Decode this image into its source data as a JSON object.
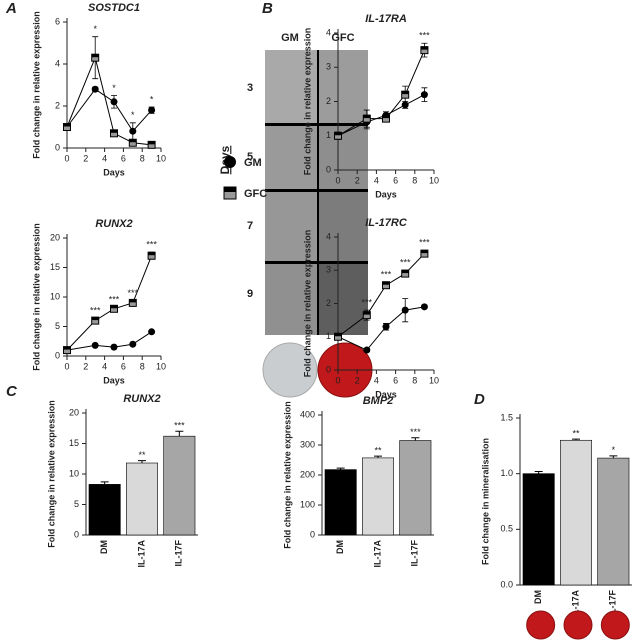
{
  "panel_labels": [
    "A",
    "B",
    "C",
    "D"
  ],
  "panel_b": {
    "columns": [
      "GM",
      "GFC"
    ],
    "rows": [
      "3",
      "5",
      "7",
      "9"
    ],
    "axis_label": "Days"
  },
  "chart_data": [
    {
      "type": "line",
      "title": "SOSTDC1",
      "x_label": "Days",
      "y_label": "Fold change in relative expression",
      "x": [
        0,
        3,
        5,
        7,
        9
      ],
      "xlim": [
        0,
        10
      ],
      "xticks": [
        0,
        2,
        4,
        6,
        8,
        10
      ],
      "ylim": [
        0,
        6
      ],
      "yticks": [
        0,
        2,
        4,
        6
      ],
      "series": [
        {
          "name": "GM",
          "marker": "circle",
          "color": "#000000",
          "values": [
            1,
            2.8,
            2.2,
            0.8,
            1.8
          ],
          "errors": [
            0.05,
            0.1,
            0.3,
            0.4,
            0.15
          ]
        },
        {
          "name": "GFC",
          "marker": "square",
          "color": "#000000",
          "values": [
            1,
            4.3,
            0.7,
            0.25,
            0.15
          ],
          "errors": [
            0.05,
            1.0,
            0.15,
            0.1,
            0.1
          ]
        }
      ],
      "annotations": [
        {
          "x": 3,
          "text": "*"
        },
        {
          "x": 5,
          "text": "*"
        },
        {
          "x": 7,
          "text": "*"
        },
        {
          "x": 9,
          "text": "*"
        }
      ]
    },
    {
      "type": "line",
      "title": "IL-17RA",
      "x_label": "Days",
      "y_label": "Fold change in relative expression",
      "x": [
        0,
        3,
        5,
        7,
        9
      ],
      "xlim": [
        0,
        10
      ],
      "xticks": [
        0,
        2,
        4,
        6,
        8,
        10
      ],
      "ylim": [
        0,
        4
      ],
      "yticks": [
        0,
        1,
        2,
        3,
        4
      ],
      "series": [
        {
          "name": "GM",
          "marker": "circle",
          "color": "#000000",
          "values": [
            1,
            1.4,
            1.6,
            1.9,
            2.2
          ],
          "errors": [
            0.1,
            0.2,
            0.1,
            0.1,
            0.2
          ]
        },
        {
          "name": "GFC",
          "marker": "square",
          "color": "#000000",
          "values": [
            1,
            1.5,
            1.5,
            2.2,
            3.5
          ],
          "errors": [
            0.1,
            0.25,
            0.1,
            0.25,
            0.2
          ]
        }
      ],
      "annotations": [
        {
          "x": 9,
          "text": "***"
        }
      ]
    },
    {
      "type": "line",
      "title": "RUNX2",
      "x_label": "Days",
      "y_label": "Fold change in relative expression",
      "x": [
        0,
        3,
        5,
        7,
        9
      ],
      "xlim": [
        0,
        10
      ],
      "xticks": [
        0,
        2,
        4,
        6,
        8,
        10
      ],
      "ylim": [
        0,
        20
      ],
      "yticks": [
        0,
        5,
        10,
        15,
        20
      ],
      "series": [
        {
          "name": "GM",
          "marker": "circle",
          "color": "#000000",
          "values": [
            1,
            1.8,
            1.5,
            2,
            4.1
          ],
          "errors": [
            0.1,
            0.1,
            0.1,
            0.1,
            0.2
          ]
        },
        {
          "name": "GFC",
          "marker": "square",
          "color": "#000000",
          "values": [
            1,
            6,
            8,
            9,
            17
          ],
          "errors": [
            0.1,
            0.4,
            0.3,
            0.4,
            0.6
          ]
        }
      ],
      "annotations": [
        {
          "x": 3,
          "text": "***"
        },
        {
          "x": 5,
          "text": "***"
        },
        {
          "x": 7,
          "text": "***"
        },
        {
          "x": 9,
          "text": "***"
        }
      ]
    },
    {
      "type": "line",
      "title": "IL-17RC",
      "x_label": "Days",
      "y_label": "Fold change in relative expression",
      "x": [
        0,
        3,
        5,
        7,
        9
      ],
      "xlim": [
        0,
        10
      ],
      "xticks": [
        0,
        2,
        4,
        6,
        8,
        10
      ],
      "ylim": [
        0,
        4
      ],
      "yticks": [
        0,
        1,
        2,
        3,
        4
      ],
      "series": [
        {
          "name": "GM",
          "marker": "circle",
          "color": "#000000",
          "values": [
            1,
            0.6,
            1.3,
            1.8,
            1.9
          ],
          "errors": [
            0.05,
            0.05,
            0.1,
            0.35,
            0.05
          ]
        },
        {
          "name": "GFC",
          "marker": "square",
          "color": "#000000",
          "values": [
            1,
            1.65,
            2.55,
            2.9,
            3.5
          ],
          "errors": [
            0.05,
            0.15,
            0.1,
            0.1,
            0.1
          ]
        }
      ],
      "annotations": [
        {
          "x": 3,
          "text": "***"
        },
        {
          "x": 5,
          "text": "***"
        },
        {
          "x": 7,
          "text": "***"
        },
        {
          "x": 9,
          "text": "***"
        }
      ]
    },
    {
      "type": "bar",
      "title": "RUNX2",
      "y_label": "Fold change in relative expression",
      "categories": [
        "DM",
        "IL-17A",
        "IL-17F"
      ],
      "values": [
        8.3,
        11.8,
        16.2
      ],
      "errors": [
        0.4,
        0.4,
        0.8
      ],
      "colors": [
        "#000000",
        "#d9d9d9",
        "#a6a6a6"
      ],
      "ylim": [
        0,
        20
      ],
      "yticks": [
        0,
        5,
        10,
        15,
        20
      ],
      "annotations": [
        {
          "category": "IL-17A",
          "text": "**"
        },
        {
          "category": "IL-17F",
          "text": "***"
        }
      ]
    },
    {
      "type": "bar",
      "title": "BMP2",
      "y_label": "Fold change in relative expression",
      "categories": [
        "DM",
        "IL-17A",
        "IL-17F"
      ],
      "values": [
        218,
        257,
        315
      ],
      "errors": [
        5,
        6,
        9
      ],
      "colors": [
        "#000000",
        "#d9d9d9",
        "#a6a6a6"
      ],
      "ylim": [
        0,
        400
      ],
      "yticks": [
        0,
        100,
        200,
        300,
        400
      ],
      "annotations": [
        {
          "category": "IL-17A",
          "text": "**"
        },
        {
          "category": "IL-17F",
          "text": "***"
        }
      ]
    },
    {
      "type": "bar",
      "y_label": "Fold change in mineralisation",
      "categories": [
        "DM",
        "IL-17A",
        "IL-17F"
      ],
      "values": [
        1.0,
        1.3,
        1.14
      ],
      "errors": [
        0.02,
        0.01,
        0.02
      ],
      "colors": [
        "#000000",
        "#d9d9d9",
        "#a6a6a6"
      ],
      "ylim": [
        0,
        1.5
      ],
      "yticks": [
        {
          "value": 0,
          "label": "0.0"
        },
        {
          "value": 0.5,
          "label": "0.5"
        },
        {
          "value": 1,
          "label": "1.0"
        },
        {
          "value": 1.5,
          "label": "1.5"
        }
      ],
      "annotations": [
        {
          "category": "IL-17A",
          "text": "**"
        },
        {
          "category": "IL-17F",
          "text": "*"
        }
      ]
    }
  ]
}
